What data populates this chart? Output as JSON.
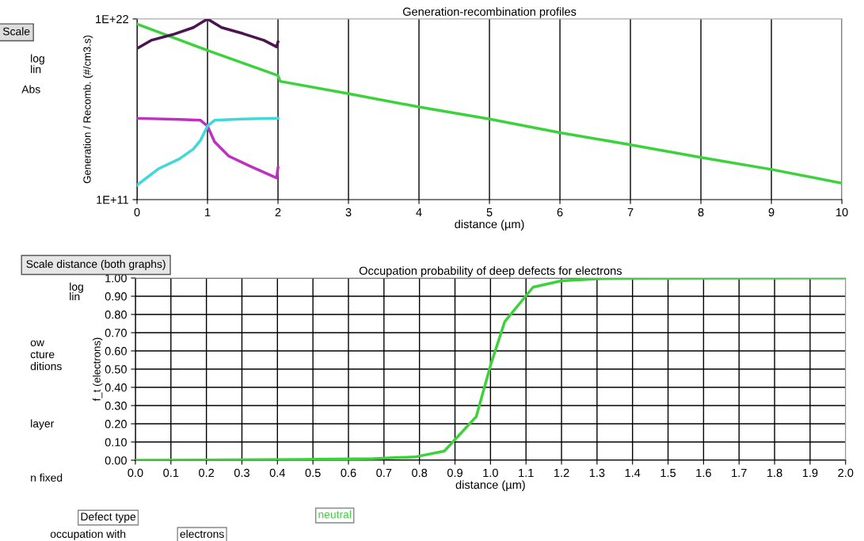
{
  "chart_data": [
    {
      "type": "line",
      "title": "Generation-recombination profiles",
      "xlabel": "distance (µm)",
      "ylabel": "Generation / Recomb. (#/cm3.s)",
      "log": "y",
      "xlim": [
        0,
        10
      ],
      "xticks": [
        0,
        1,
        2,
        3,
        4,
        5,
        6,
        7,
        8,
        9,
        10
      ],
      "ylim": [
        100000000000.0,
        1e+22
      ],
      "yticks": [
        {
          "value": 100000000000.0,
          "label": "1E+11"
        },
        {
          "value": 1e+22,
          "label": "1E+22"
        }
      ],
      "grid": "x",
      "legend": false,
      "marker": "none",
      "line_style": "solid",
      "series": [
        {
          "color": "#3cd23c",
          "x": [
            0,
            1,
            2,
            2.03,
            3,
            4,
            5,
            6,
            7,
            8,
            9,
            10
          ],
          "values": [
            4.9e+21,
            1.2e+20,
            3.6e+18,
            1.6e+18,
            2.8e+17,
            4.4e+16,
            8100000000000000.0,
            1200000000000000.0,
            220000000000000.0,
            37000000000000.0,
            6900000000000.0,
            1000000000000.0
          ]
        },
        {
          "color": "#4b1650",
          "x": [
            0,
            0.2,
            0.5,
            0.8,
            1,
            1.2,
            1.5,
            1.8,
            1.98,
            2
          ],
          "values": [
            1.6e+20,
            5e+20,
            1.1e+21,
            3e+21,
            1e+22,
            3e+21,
            1.3e+21,
            5e+20,
            2e+20,
            4e+20
          ]
        },
        {
          "color": "#c030c0",
          "x": [
            0,
            0.6,
            0.9,
            1,
            1.1,
            1.3,
            1.6,
            1.98,
            2
          ],
          "values": [
            8900000000000000.0,
            7600000000000000.0,
            6800000000000000.0,
            3000000000000000.0,
            330000000000000.0,
            45000000000000.0,
            11000000000000.0,
            2100000000000.0,
            8900000000000.0
          ]
        },
        {
          "color": "#40d8d8",
          "x": [
            0,
            0.3,
            0.6,
            0.8,
            0.9,
            1,
            1.1,
            1.5,
            2
          ],
          "values": [
            760000000000.0,
            7400000000000.0,
            30000000000000.0,
            120000000000000.0,
            410000000000000.0,
            3000000000000000.0,
            6800000000000000.0,
            8100000000000000.0,
            8900000000000000.0
          ]
        }
      ],
      "annotations": [
        "Scale",
        "log",
        "lin",
        "Abs"
      ]
    },
    {
      "type": "line",
      "title": "Occupation probability of deep defects for electrons",
      "xlabel": "distance (µm)",
      "ylabel": "f_t (electrons)",
      "xlim": [
        0,
        2
      ],
      "xticks": [
        {
          "value": 0,
          "label": "0.0"
        },
        {
          "value": 0.1,
          "label": "0.1"
        },
        {
          "value": 0.2,
          "label": "0.2"
        },
        {
          "value": 0.3,
          "label": "0.3"
        },
        {
          "value": 0.4,
          "label": "0.4"
        },
        {
          "value": 0.5,
          "label": "0.5"
        },
        {
          "value": 0.6,
          "label": "0.6"
        },
        {
          "value": 0.7,
          "label": "0.7"
        },
        {
          "value": 0.8,
          "label": "0.8"
        },
        {
          "value": 0.9,
          "label": "0.9"
        },
        {
          "value": 1,
          "label": "1.0"
        },
        {
          "value": 1.1,
          "label": "1.1"
        },
        {
          "value": 1.2,
          "label": "1.2"
        },
        {
          "value": 1.3,
          "label": "1.3"
        },
        {
          "value": 1.4,
          "label": "1.4"
        },
        {
          "value": 1.5,
          "label": "1.5"
        },
        {
          "value": 1.6,
          "label": "1.6"
        },
        {
          "value": 1.7,
          "label": "1.7"
        },
        {
          "value": 1.8,
          "label": "1.8"
        },
        {
          "value": 1.9,
          "label": "1.9"
        },
        {
          "value": 2,
          "label": "2.0"
        }
      ],
      "ylim": [
        0,
        1
      ],
      "yticks": [
        {
          "value": 0,
          "label": "0.00"
        },
        {
          "value": 0.1,
          "label": "0.10"
        },
        {
          "value": 0.2,
          "label": "0.20"
        },
        {
          "value": 0.3,
          "label": "0.30"
        },
        {
          "value": 0.4,
          "label": "0.40"
        },
        {
          "value": 0.5,
          "label": "0.50"
        },
        {
          "value": 0.6,
          "label": "0.60"
        },
        {
          "value": 0.7,
          "label": "0.70"
        },
        {
          "value": 0.8,
          "label": "0.80"
        },
        {
          "value": 0.9,
          "label": "0.90"
        },
        {
          "value": 1,
          "label": "1.00"
        }
      ],
      "grid": true,
      "legend": false,
      "marker": "none",
      "line_style": "solid",
      "series": [
        {
          "color": "#3cd23c",
          "x": [
            0,
            0.47,
            0.67,
            0.79,
            0.87,
            0.96,
            1.0,
            1.04,
            1.12,
            1.2,
            1.3,
            1.45,
            2.0
          ],
          "values": [
            0,
            0.004,
            0.009,
            0.019,
            0.05,
            0.24,
            0.52,
            0.76,
            0.95,
            0.985,
            0.996,
            0.999,
            1.0
          ]
        }
      ],
      "annotations": [
        "Scale distance (both graphs)",
        "log",
        "lin",
        "ow",
        "cture",
        "ditions",
        "layer",
        "n fixed",
        "Defect type",
        "occupation with",
        "electrons",
        "neutral"
      ]
    }
  ]
}
